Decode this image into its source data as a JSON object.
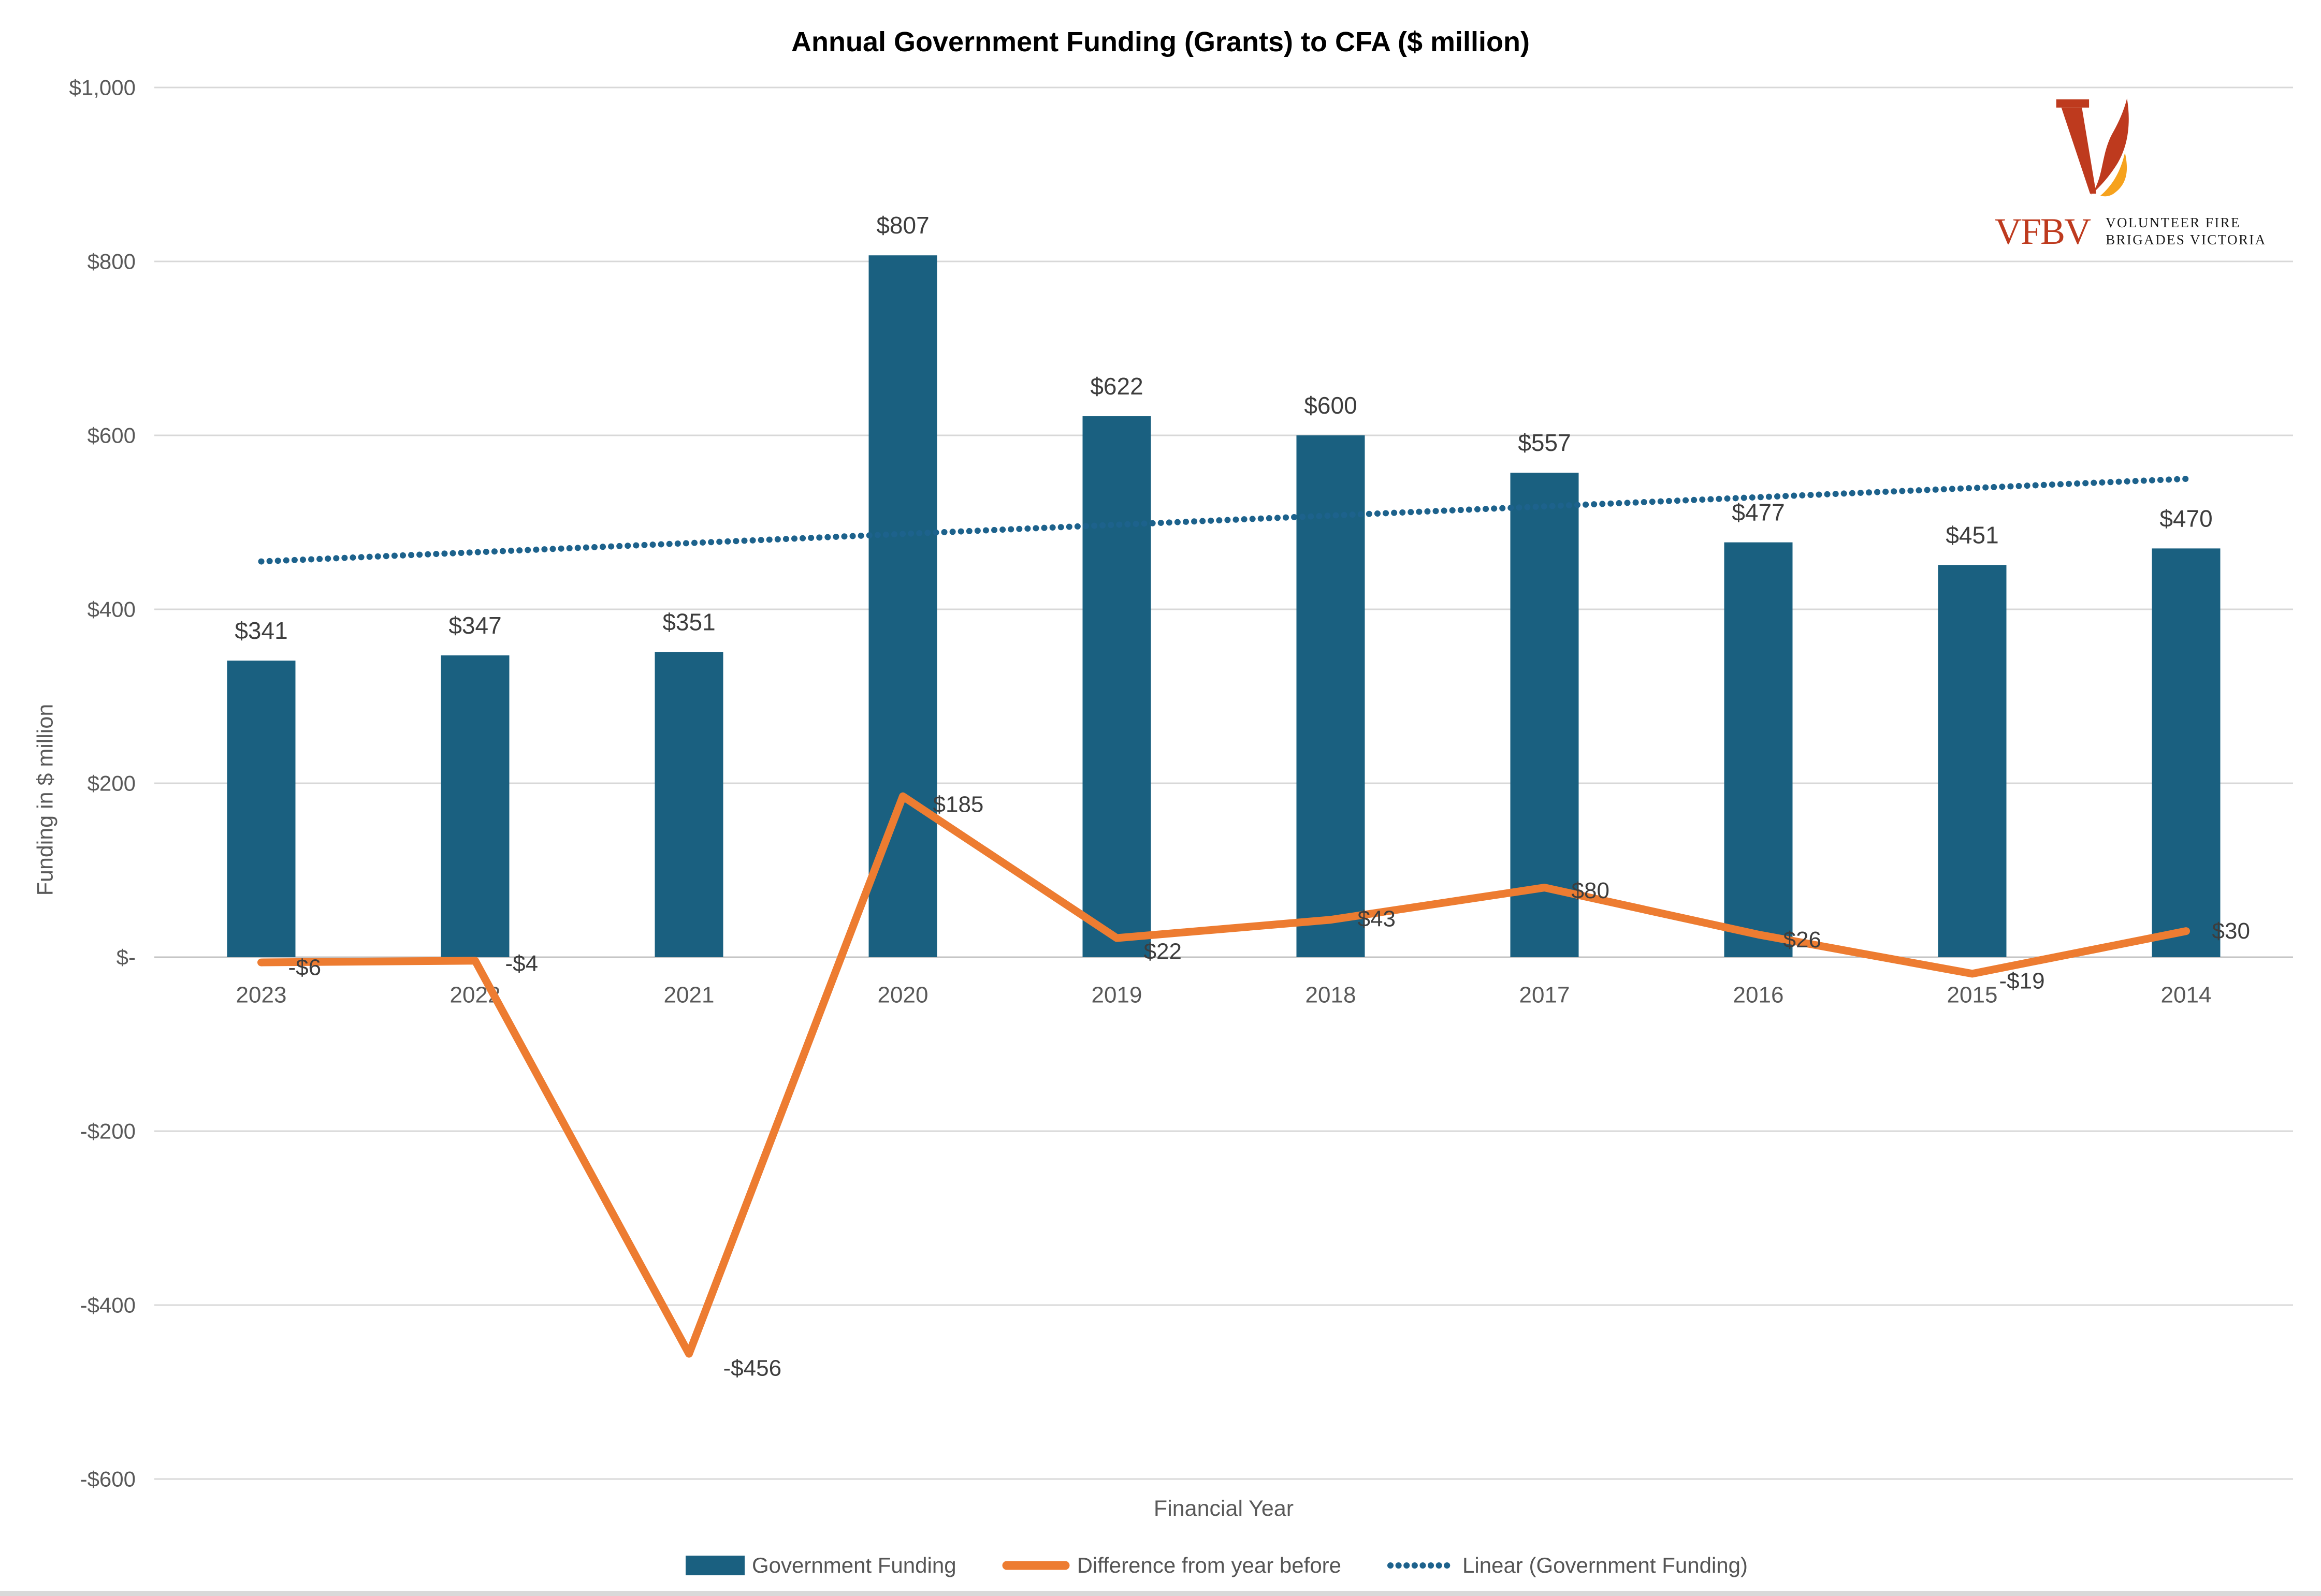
{
  "chart_data": {
    "type": "combo-bar-line",
    "title": "Annual Government Funding (Grants) to CFA ($ million)",
    "xlabel": "Financial Year",
    "ylabel": "Funding in $ million",
    "categories": [
      "2023",
      "2022",
      "2021",
      "2020",
      "2019",
      "2018",
      "2017",
      "2016",
      "2015",
      "2014"
    ],
    "series": [
      {
        "name": "Government Funding",
        "type": "bar",
        "color": "#1A6080",
        "values": [
          341,
          347,
          351,
          807,
          622,
          600,
          557,
          477,
          451,
          470
        ],
        "data_labels": [
          "$341",
          "$347",
          "$351",
          "$807",
          "$622",
          "$600",
          "$557",
          "$477",
          "$451",
          "$470"
        ]
      },
      {
        "name": "Difference from year before",
        "type": "line",
        "color": "#ED7C31",
        "values": [
          -6,
          -4,
          -456,
          185,
          22,
          43,
          80,
          26,
          -19,
          30
        ],
        "data_labels": [
          "-$6",
          "-$4",
          "-$456",
          "$185",
          "$22",
          "$43",
          "$80",
          "$26",
          "-$19",
          "$30"
        ]
      },
      {
        "name": "Linear (Government Funding)",
        "type": "linear-trendline",
        "style": "dotted",
        "color": "#1D628C",
        "start_value": 455,
        "end_value": 550
      }
    ],
    "y_axis": {
      "min": -600,
      "max": 1000,
      "gridlines": true,
      "ticks": [
        {
          "value": 1000,
          "label": "$1,000"
        },
        {
          "value": 800,
          "label": "$800"
        },
        {
          "value": 600,
          "label": "$600"
        },
        {
          "value": 400,
          "label": "$400"
        },
        {
          "value": 200,
          "label": "$200"
        },
        {
          "value": 0,
          "label": "$-"
        },
        {
          "value": -200,
          "label": "-$200"
        },
        {
          "value": -400,
          "label": "-$400"
        },
        {
          "value": -600,
          "label": "-$600"
        }
      ]
    },
    "legend": {
      "position": "bottom"
    }
  },
  "logo": {
    "abbr": "VFBV",
    "name_line1": "VOLUNTEER FIRE",
    "name_line2": "BRIGADES VICTORIA"
  }
}
